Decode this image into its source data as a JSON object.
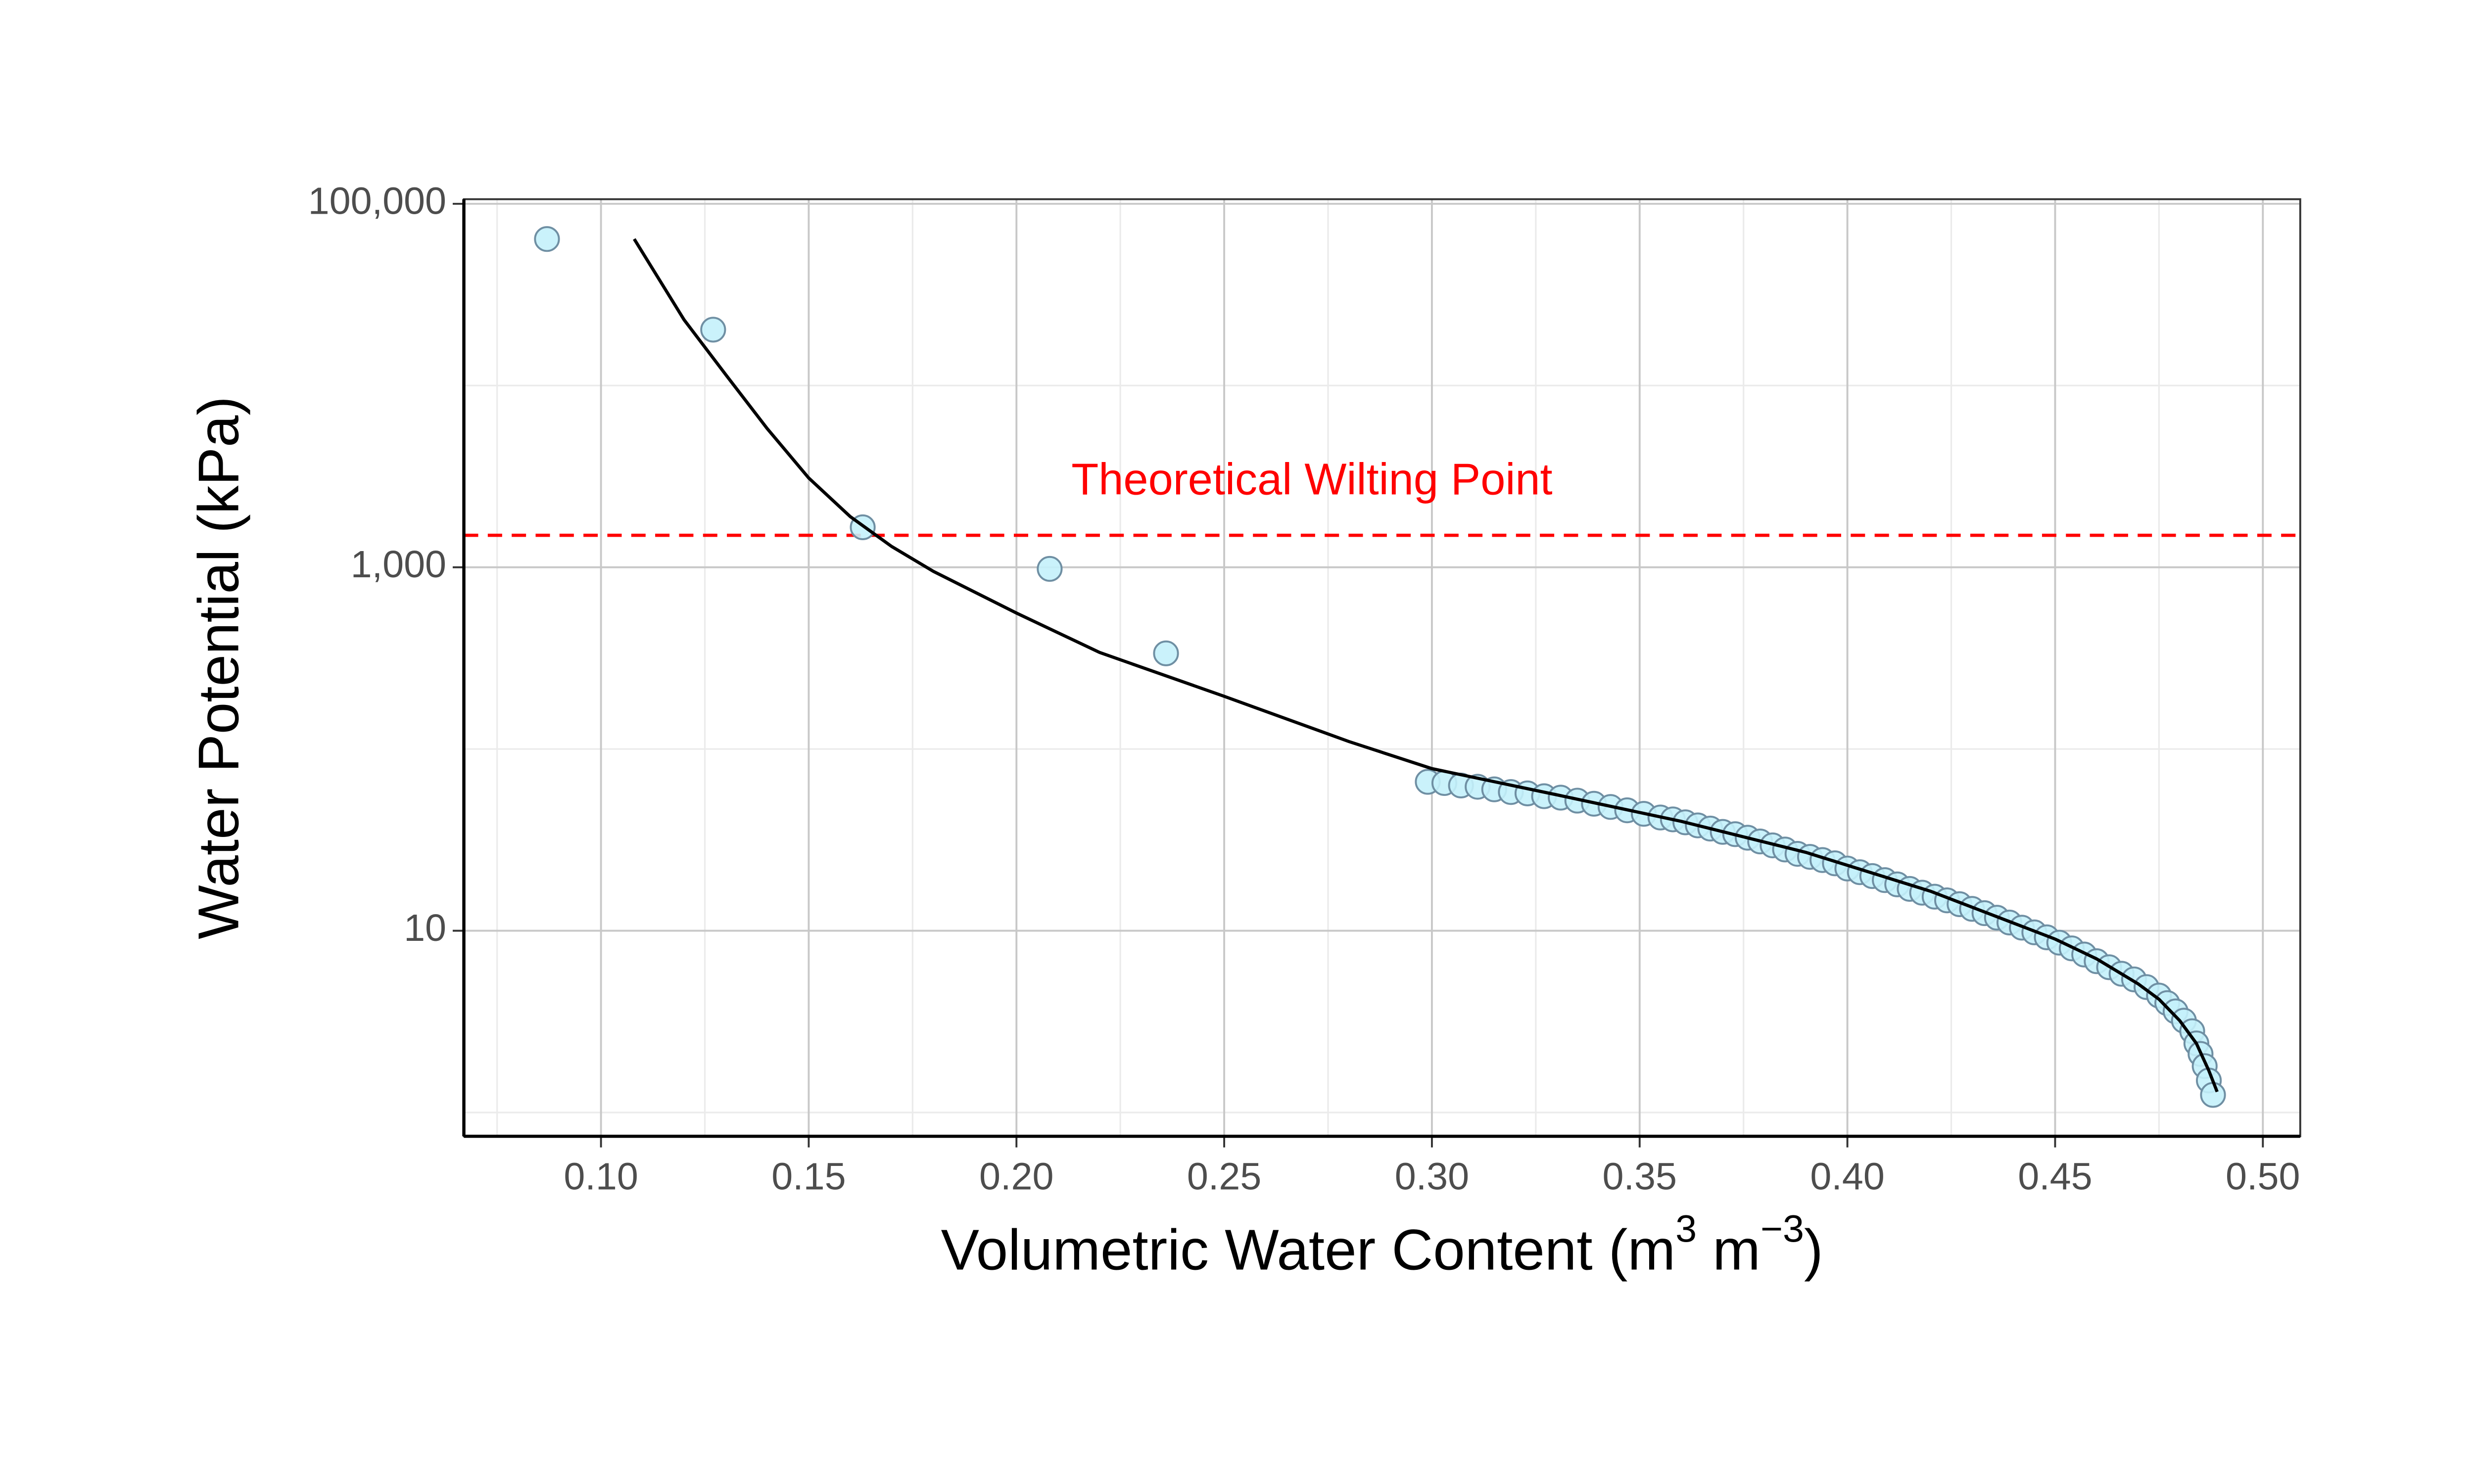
{
  "chart_data": {
    "type": "scatter",
    "ylabel": "Water Potential (kPa)",
    "xlabel_parts": [
      "Volumetric Water Content (m",
      "3",
      " m",
      "−3",
      ")"
    ],
    "xlim": [
      0.067,
      0.509
    ],
    "ylim": [
      0.74,
      106000
    ],
    "ylog": true,
    "grid": true,
    "xticks": [
      {
        "value": 0.1,
        "label": "0.10"
      },
      {
        "value": 0.15,
        "label": "0.15"
      },
      {
        "value": 0.2,
        "label": "0.20"
      },
      {
        "value": 0.25,
        "label": "0.25"
      },
      {
        "value": 0.3,
        "label": "0.30"
      },
      {
        "value": 0.35,
        "label": "0.35"
      },
      {
        "value": 0.4,
        "label": "0.40"
      },
      {
        "value": 0.45,
        "label": "0.45"
      },
      {
        "value": 0.5,
        "label": "0.50"
      }
    ],
    "yticks": [
      10,
      {
        "value": 1000,
        "label": "1,000"
      },
      {
        "value": 100000,
        "label": "100,000"
      }
    ],
    "x_minor_grid": [
      0.075,
      0.125,
      0.175,
      0.225,
      0.275,
      0.325,
      0.375,
      0.425,
      0.475
    ],
    "y_minor_grid": [
      1,
      100,
      10000
    ],
    "points": {
      "color": "#c4f1fb",
      "edgecolor": "#6f8fa3",
      "x": [
        0.087,
        0.127,
        0.163,
        0.208,
        0.236,
        0.299,
        0.303,
        0.307,
        0.311,
        0.315,
        0.319,
        0.323,
        0.327,
        0.331,
        0.335,
        0.339,
        0.343,
        0.347,
        0.351,
        0.355,
        0.358,
        0.361,
        0.364,
        0.367,
        0.37,
        0.373,
        0.376,
        0.379,
        0.382,
        0.385,
        0.388,
        0.391,
        0.394,
        0.397,
        0.4,
        0.403,
        0.406,
        0.409,
        0.412,
        0.415,
        0.418,
        0.421,
        0.424,
        0.427,
        0.43,
        0.433,
        0.436,
        0.439,
        0.442,
        0.445,
        0.448,
        0.451,
        0.454,
        0.457,
        0.46,
        0.463,
        0.466,
        0.469,
        0.472,
        0.475,
        0.477,
        0.479,
        0.481,
        0.483,
        0.484,
        0.485,
        0.486,
        0.487,
        0.488
      ],
      "values": [
        64000,
        20300,
        1660,
        980,
        336,
        66,
        65,
        63,
        62,
        60,
        58,
        57,
        55,
        54,
        52,
        50,
        48,
        46,
        44,
        42,
        41,
        39.5,
        38,
        36.5,
        35,
        34,
        32.5,
        31,
        29.5,
        28,
        26.5,
        25.5,
        24.5,
        23.5,
        22,
        21,
        20,
        19,
        18,
        17,
        16.2,
        15.4,
        14.7,
        14,
        13.2,
        12.5,
        11.8,
        11.1,
        10.4,
        9.8,
        9.2,
        8.6,
        8.0,
        7.4,
        6.8,
        6.3,
        5.8,
        5.4,
        4.9,
        4.4,
        4.0,
        3.6,
        3.2,
        2.8,
        2.4,
        2.1,
        1.8,
        1.5,
        1.25
      ]
    },
    "curve": {
      "color": "#000000",
      "x": [
        0.108,
        0.12,
        0.13,
        0.14,
        0.15,
        0.16,
        0.17,
        0.18,
        0.2,
        0.22,
        0.25,
        0.28,
        0.3,
        0.33,
        0.36,
        0.39,
        0.42,
        0.45,
        0.46,
        0.47,
        0.475,
        0.48,
        0.484,
        0.487,
        0.489
      ],
      "values": [
        64000,
        23000,
        11500,
        5800,
        3100,
        1900,
        1300,
        950,
        560,
        340,
        195,
        110,
        78,
        56,
        40,
        27,
        16.5,
        9,
        7,
        5.1,
        4.2,
        3.2,
        2.4,
        1.7,
        1.3
      ]
    },
    "hline": {
      "value": 1500,
      "color": "#ff0000",
      "label": "Theoretical Wilting Point"
    }
  }
}
